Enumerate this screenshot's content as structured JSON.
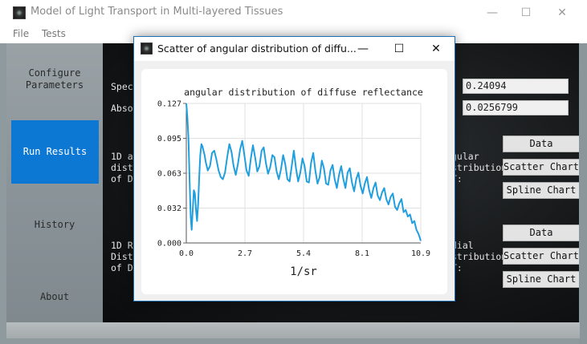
{
  "main_window": {
    "title": "Model of Light Transport in Multi-layered Tissues",
    "minimize_glyph": "—",
    "maximize_glyph": "☐",
    "close_glyph": "✕",
    "icon": "app-icon"
  },
  "menu": {
    "items": [
      "File",
      "Tests"
    ]
  },
  "nav": {
    "configure_line1": "Configure",
    "configure_line2": "Parameters",
    "run": "Run Results",
    "history": "History",
    "about": "About"
  },
  "content": {
    "spec_label": "Spec",
    "abso_label": "Abso",
    "spec_value": "0.24094",
    "abso_value": "0.0256799",
    "section1_left": [
      "1D a",
      "dist",
      "of D"
    ],
    "section1_right": [
      "gular",
      "stribution",
      "T:"
    ],
    "section2_left": [
      "1D R",
      "Dist",
      "of D"
    ],
    "section2_right": [
      "dial",
      "stribution",
      "T:"
    ],
    "buttons1": [
      "Data",
      "Scatter Chart",
      "Spline Chart"
    ],
    "buttons2": [
      "Data",
      "Scatter Chart",
      "Spline Chart"
    ]
  },
  "dialog": {
    "title": "Scatter of angular distribution of diffu...",
    "minimize_glyph": "—",
    "maximize_glyph": "☐",
    "close_glyph": "✕"
  },
  "chart_data": {
    "type": "line",
    "title": "angular distribution of diffuse reflectance",
    "xlabel": "1/sr",
    "ylabel": "",
    "xlim": [
      0.0,
      10.9
    ],
    "ylim": [
      0.0,
      0.127
    ],
    "x_ticks": [
      "0.0",
      "2.7",
      "5.4",
      "8.1",
      "10.9"
    ],
    "y_ticks": [
      "0.000",
      "0.032",
      "0.063",
      "0.095",
      "0.127"
    ],
    "grid": true,
    "color": "#209fdf",
    "x": [
      0.0,
      0.05,
      0.1,
      0.15,
      0.2,
      0.25,
      0.3,
      0.35,
      0.4,
      0.45,
      0.5,
      0.55,
      0.6,
      0.65,
      0.7,
      0.75,
      0.8,
      0.85,
      0.9,
      1.0,
      1.1,
      1.2,
      1.3,
      1.4,
      1.5,
      1.6,
      1.7,
      1.8,
      1.9,
      2.0,
      2.1,
      2.2,
      2.3,
      2.4,
      2.5,
      2.6,
      2.7,
      2.8,
      2.9,
      3.0,
      3.1,
      3.2,
      3.3,
      3.4,
      3.5,
      3.6,
      3.7,
      3.8,
      3.9,
      4.0,
      4.1,
      4.2,
      4.3,
      4.4,
      4.5,
      4.6,
      4.7,
      4.8,
      4.9,
      5.0,
      5.1,
      5.2,
      5.3,
      5.4,
      5.5,
      5.6,
      5.7,
      5.8,
      5.9,
      6.0,
      6.1,
      6.2,
      6.3,
      6.4,
      6.5,
      6.6,
      6.7,
      6.8,
      6.9,
      7.0,
      7.1,
      7.2,
      7.3,
      7.4,
      7.5,
      7.6,
      7.7,
      7.8,
      7.9,
      8.0,
      8.1,
      8.2,
      8.3,
      8.4,
      8.5,
      8.6,
      8.7,
      8.8,
      8.9,
      9.0,
      9.1,
      9.2,
      9.3,
      9.4,
      9.5,
      9.6,
      9.7,
      9.8,
      9.9,
      10.0,
      10.1,
      10.2,
      10.3,
      10.4,
      10.5,
      10.6,
      10.7,
      10.8,
      10.9
    ],
    "y": [
      0.127,
      0.115,
      0.095,
      0.06,
      0.025,
      0.012,
      0.03,
      0.048,
      0.045,
      0.03,
      0.02,
      0.035,
      0.06,
      0.08,
      0.09,
      0.088,
      0.084,
      0.08,
      0.074,
      0.066,
      0.07,
      0.082,
      0.084,
      0.076,
      0.066,
      0.06,
      0.058,
      0.064,
      0.078,
      0.09,
      0.083,
      0.07,
      0.062,
      0.072,
      0.085,
      0.093,
      0.08,
      0.066,
      0.061,
      0.077,
      0.089,
      0.078,
      0.065,
      0.07,
      0.084,
      0.087,
      0.073,
      0.063,
      0.069,
      0.08,
      0.078,
      0.065,
      0.058,
      0.067,
      0.08,
      0.072,
      0.058,
      0.056,
      0.07,
      0.084,
      0.068,
      0.056,
      0.064,
      0.077,
      0.07,
      0.056,
      0.055,
      0.073,
      0.082,
      0.066,
      0.054,
      0.06,
      0.075,
      0.068,
      0.054,
      0.053,
      0.066,
      0.071,
      0.058,
      0.05,
      0.062,
      0.07,
      0.058,
      0.05,
      0.064,
      0.068,
      0.055,
      0.047,
      0.058,
      0.064,
      0.052,
      0.045,
      0.054,
      0.06,
      0.048,
      0.041,
      0.05,
      0.055,
      0.043,
      0.039,
      0.046,
      0.05,
      0.04,
      0.035,
      0.042,
      0.045,
      0.033,
      0.03,
      0.036,
      0.04,
      0.028,
      0.03,
      0.024,
      0.026,
      0.018,
      0.02,
      0.012,
      0.008,
      0.002
    ]
  }
}
